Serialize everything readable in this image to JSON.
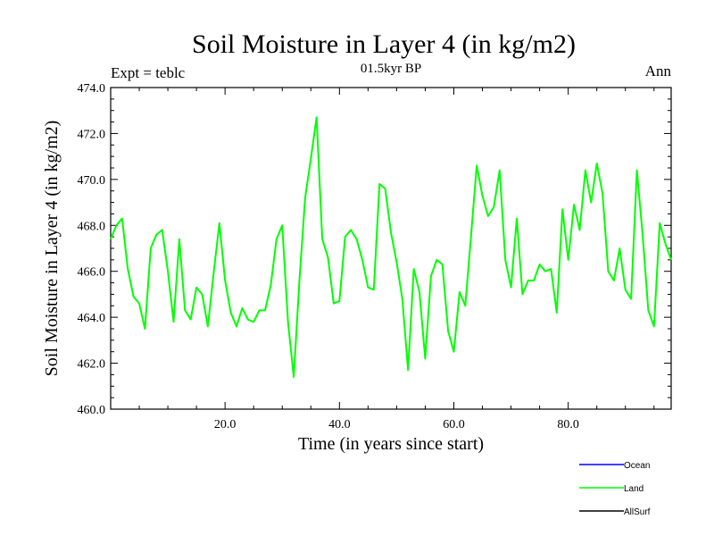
{
  "chart_data": {
    "type": "line",
    "title": "Soil Moisture in Layer 4 (in kg/m2)",
    "subtitle": "01.5kyr BP",
    "left_label": "Expt = teblc",
    "right_label": "Ann",
    "xlabel": "Time (in years since start)",
    "ylabel": "Soil Moisture in Layer 4 (in kg/m2)",
    "xlim": [
      0,
      98
    ],
    "ylim": [
      460,
      474
    ],
    "x_ticks": [
      20,
      40,
      60,
      80
    ],
    "x_tick_labels": [
      "20.0",
      "40.0",
      "60.0",
      "80.0"
    ],
    "y_ticks": [
      460,
      462,
      464,
      466,
      468,
      470,
      472,
      474
    ],
    "y_tick_labels": [
      "460.0",
      "462.0",
      "464.0",
      "466.0",
      "468.0",
      "470.0",
      "472.0",
      "474.0"
    ],
    "legend_position": "bottom-right",
    "series": [
      {
        "name": "Ocean",
        "color": "#0000ff",
        "values": []
      },
      {
        "name": "Land",
        "color": "#00ff00",
        "x": [
          0,
          1,
          2,
          3,
          4,
          5,
          6,
          7,
          8,
          9,
          10,
          11,
          12,
          13,
          14,
          15,
          16,
          17,
          18,
          19,
          20,
          21,
          22,
          23,
          24,
          25,
          26,
          27,
          28,
          29,
          30,
          31,
          32,
          33,
          34,
          35,
          36,
          37,
          38,
          39,
          40,
          41,
          42,
          43,
          44,
          45,
          46,
          47,
          48,
          49,
          50,
          51,
          52,
          53,
          54,
          55,
          56,
          57,
          58,
          59,
          60,
          61,
          62,
          63,
          64,
          65,
          66,
          67,
          68,
          69,
          70,
          71,
          72,
          73,
          74,
          75,
          76,
          77,
          78,
          79,
          80,
          81,
          82,
          83,
          84,
          85,
          86,
          87,
          88,
          89,
          90,
          91,
          92,
          93,
          94,
          95,
          96,
          97,
          98
        ],
        "values": [
          467.4,
          468.0,
          468.3,
          466.1,
          464.9,
          464.6,
          463.5,
          467.0,
          467.6,
          467.8,
          466.0,
          463.8,
          467.4,
          464.3,
          463.9,
          465.3,
          465.0,
          463.6,
          465.9,
          468.1,
          465.6,
          464.2,
          463.6,
          464.4,
          463.9,
          463.8,
          464.3,
          464.3,
          465.4,
          467.4,
          468.0,
          463.8,
          461.4,
          465.6,
          469.2,
          470.9,
          472.7,
          467.4,
          466.6,
          464.6,
          464.7,
          467.5,
          467.8,
          467.4,
          466.5,
          465.3,
          465.2,
          469.8,
          469.6,
          467.7,
          466.4,
          464.8,
          461.7,
          466.1,
          465.1,
          462.2,
          465.8,
          466.5,
          466.3,
          463.4,
          462.5,
          465.1,
          464.5,
          467.5,
          470.6,
          469.3,
          468.4,
          468.8,
          470.4,
          466.5,
          465.3,
          468.3,
          465.0,
          465.6,
          465.6,
          466.3,
          466.0,
          466.1,
          464.2,
          468.7,
          466.5,
          468.9,
          467.8,
          470.4,
          469.0,
          470.7,
          469.4,
          466.0,
          465.6,
          467.0,
          465.2,
          464.8,
          470.4,
          467.6,
          464.3,
          463.6,
          468.1,
          467.2,
          466.5
        ]
      },
      {
        "name": "AllSurf",
        "color": "#000000",
        "values": []
      }
    ]
  }
}
